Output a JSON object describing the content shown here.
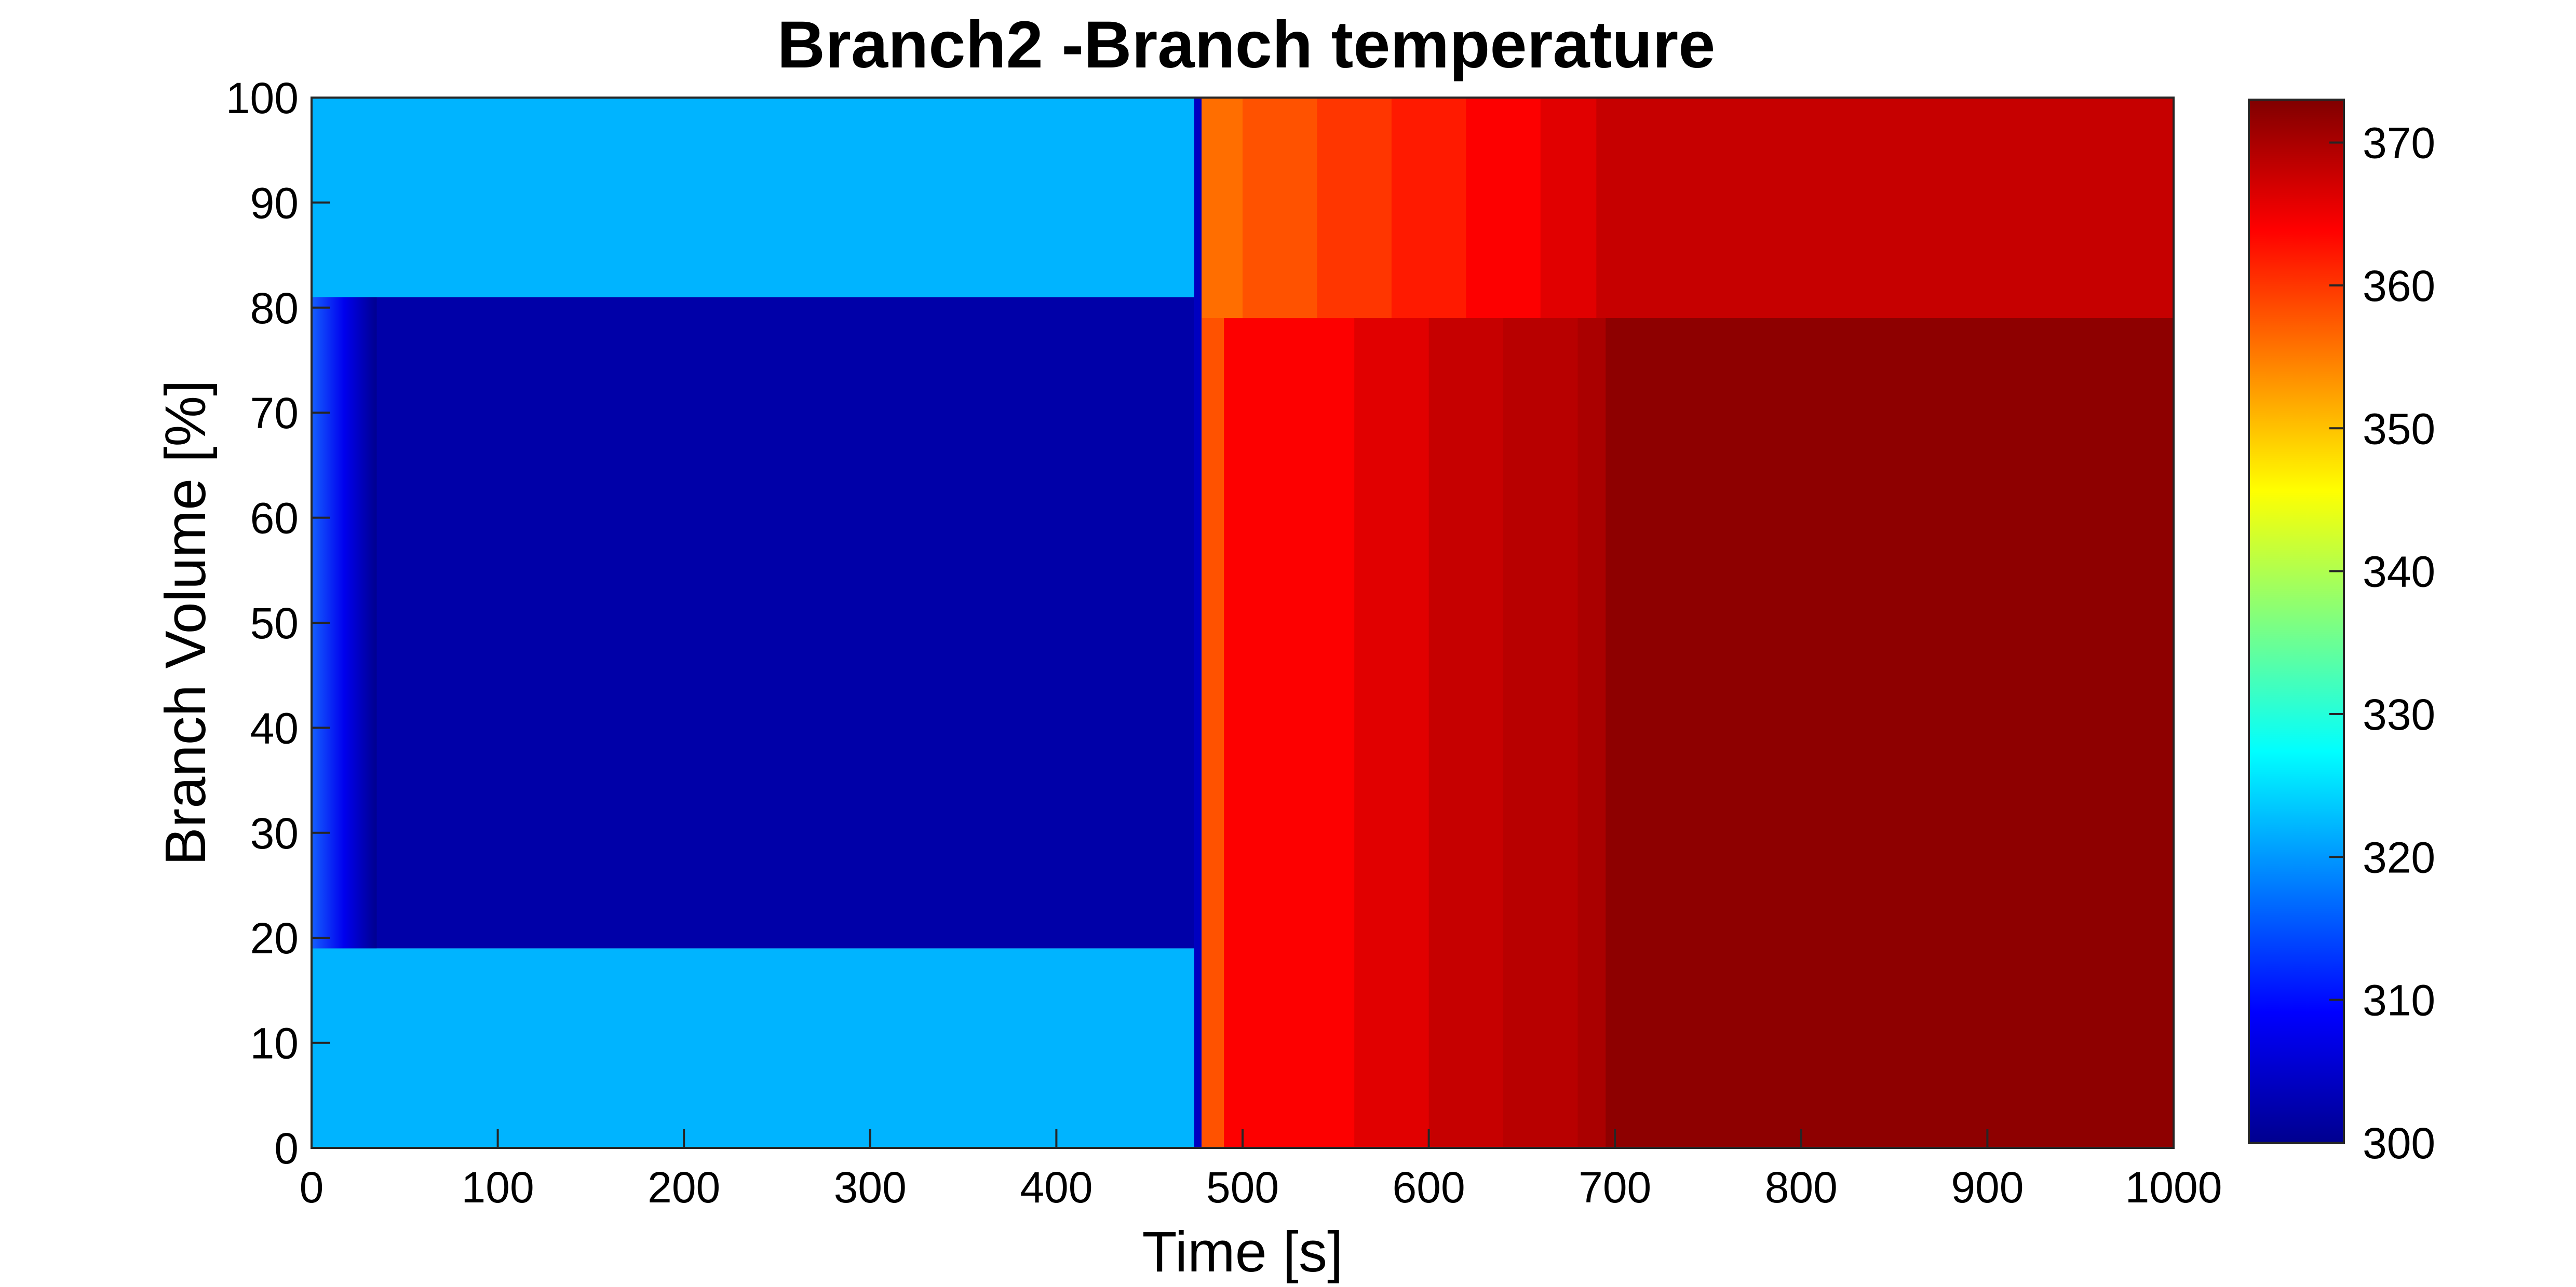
{
  "chart_data": {
    "type": "heatmap",
    "title": "Branch2 -Branch temperature",
    "xlabel": "Time [s]",
    "ylabel": "Branch Volume [%]",
    "xlim": [
      0,
      1000
    ],
    "ylim": [
      0,
      100
    ],
    "x_ticks": [
      0,
      100,
      200,
      300,
      400,
      500,
      600,
      700,
      800,
      900,
      1000
    ],
    "y_ticks": [
      0,
      10,
      20,
      30,
      40,
      50,
      60,
      70,
      80,
      90,
      100
    ],
    "colorbar": {
      "colormap": "jet",
      "clim": [
        300,
        373
      ],
      "ticks": [
        300,
        310,
        320,
        330,
        340,
        350,
        360,
        370
      ]
    },
    "regions": [
      {
        "x": [
          0,
          474
        ],
        "y": [
          0,
          19
        ],
        "value": 322
      },
      {
        "x": [
          0,
          474
        ],
        "y": [
          81,
          100
        ],
        "value": 322
      },
      {
        "x": [
          0,
          474
        ],
        "y": [
          19,
          81
        ],
        "value": 302,
        "note_x_ramp": [
          0,
          35,
          310
        ]
      },
      {
        "x": [
          474,
          478
        ],
        "y": [
          0,
          100
        ],
        "value": 304
      }
    ],
    "late_profile": {
      "time": [
        478,
        490,
        520,
        560,
        600,
        640,
        680,
        695,
        1000
      ],
      "value": [
        358,
        364,
        364,
        366,
        368,
        369,
        370,
        372,
        372
      ],
      "upper_band_y": [
        79,
        100
      ],
      "upper_band_time": [
        478,
        500,
        540,
        580,
        620,
        660,
        690,
        1000
      ],
      "upper_band_value": [
        356,
        358,
        360,
        362,
        364,
        366,
        368,
        372
      ]
    }
  }
}
